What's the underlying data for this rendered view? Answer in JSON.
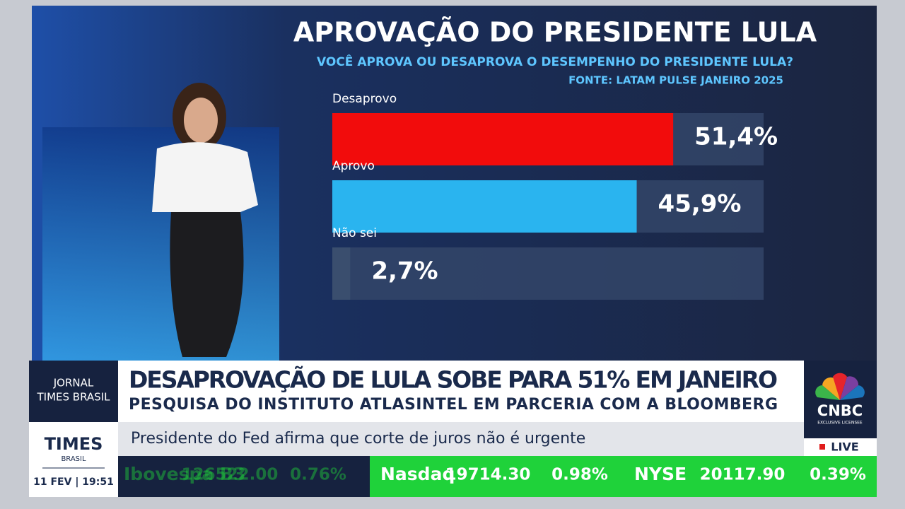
{
  "chart_data": {
    "type": "bar",
    "orientation": "horizontal",
    "title": "APROVAÇÃO DO PRESIDENTE LULA",
    "subtitle": "VOCÊ APROVA OU DESAPROVA O DESEMPENHO DO PRESIDENTE LULA?",
    "source": "FONTE: LATAM PULSE JANEIRO 2025",
    "categories": [
      "Desaprovo",
      "Aprovo",
      "Não sei"
    ],
    "values": [
      51.4,
      45.9,
      2.7
    ],
    "value_labels": [
      "51,4%",
      "45,9%",
      "2,7%"
    ],
    "colors": [
      "#f20c0c",
      "#2ab4ef",
      "#3a4e6e"
    ]
  },
  "lower_third": {
    "program": [
      "JORNAL",
      "TIMES BRASIL"
    ],
    "headline": "DESAPROVAÇÃO DE LULA SOBE PARA 51% EM JANEIRO",
    "subheadline": "PESQUISA DO INSTITUTO ATLASINTEL EM PARCERIA COM A BLOOMBERG",
    "ticker_text": "Presidente do Fed afirma que corte de juros não é urgente",
    "brand": "TIMES",
    "brand_sub": "BRASIL",
    "datetime": "11 FEV | 19:51",
    "network": "CNBC",
    "network_sub": "EXCLUSIVE LICENSEE",
    "live": "LIVE"
  },
  "market_ticker": [
    {
      "name": "Ibovespa B3",
      "value": "126522.00",
      "change": "0.76%"
    },
    {
      "name": "Nasdaq",
      "value": "19714.30",
      "change": "0.98%"
    },
    {
      "name": "NYSE",
      "value": "20117.90",
      "change": "0.39%"
    }
  ]
}
